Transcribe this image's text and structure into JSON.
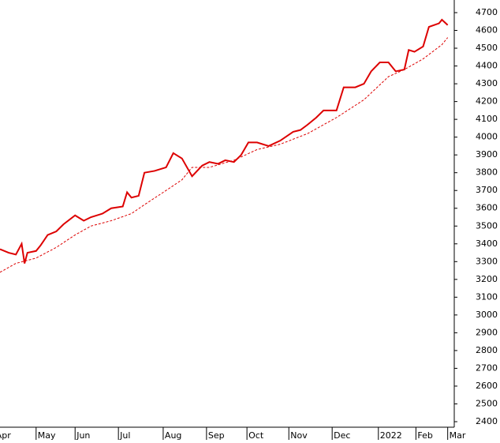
{
  "chart_data": {
    "type": "line",
    "xlim": [
      4,
      318
    ],
    "xticks": [
      {
        "value": 0,
        "label": "Apr"
      },
      {
        "value": 29,
        "label": "May"
      },
      {
        "value": 56,
        "label": "Jun"
      },
      {
        "value": 86,
        "label": "Jul"
      },
      {
        "value": 117,
        "label": "Aug"
      },
      {
        "value": 147,
        "label": "Sep"
      },
      {
        "value": 175,
        "label": "Oct"
      },
      {
        "value": 204,
        "label": "Nov"
      },
      {
        "value": 234,
        "label": "Dec"
      },
      {
        "value": 266,
        "label": "2022"
      },
      {
        "value": 292,
        "label": "Feb"
      },
      {
        "value": 314,
        "label": "Mar"
      }
    ],
    "ylim": [
      2400,
      4700
    ],
    "yticks": [
      2400,
      2500,
      2600,
      2700,
      2800,
      2900,
      3000,
      3100,
      3200,
      3300,
      3400,
      3500,
      3600,
      3700,
      3800,
      3900,
      4000,
      4100,
      4200,
      4300,
      4400,
      4500,
      4600,
      4700
    ],
    "series": [
      {
        "color": "#dd0000",
        "dash": false,
        "x": [
          4,
          10,
          15,
          19,
          21,
          23,
          29,
          32,
          37,
          43,
          48,
          56,
          62,
          67,
          75,
          81,
          89,
          92,
          95,
          100,
          104,
          111,
          119,
          124,
          130,
          137,
          144,
          149,
          155,
          160,
          166,
          171,
          176,
          182,
          190,
          198,
          207,
          212,
          217,
          223,
          228,
          237,
          242,
          250,
          256,
          261,
          267,
          273,
          278,
          284,
          287,
          291,
          297,
          301,
          308,
          310,
          314
        ],
        "values": [
          3370,
          3350,
          3340,
          3400,
          3290,
          3350,
          3360,
          3390,
          3450,
          3470,
          3510,
          3560,
          3530,
          3550,
          3570,
          3600,
          3610,
          3690,
          3660,
          3670,
          3800,
          3810,
          3830,
          3910,
          3880,
          3780,
          3840,
          3860,
          3850,
          3870,
          3860,
          3900,
          3970,
          3970,
          3950,
          3980,
          4030,
          4040,
          4070,
          4110,
          4150,
          4150,
          4280,
          4280,
          4300,
          4370,
          4420,
          4420,
          4370,
          4380,
          4490,
          4480,
          4510,
          4620,
          4640,
          4660,
          4630
        ]
      },
      {
        "color": "#dd0000",
        "dash": true,
        "x": [
          4,
          15,
          29,
          43,
          56,
          67,
          81,
          95,
          104,
          119,
          130,
          137,
          149,
          166,
          182,
          198,
          217,
          237,
          256,
          273,
          284,
          297,
          310,
          314
        ],
        "values": [
          3240,
          3290,
          3320,
          3380,
          3450,
          3500,
          3530,
          3570,
          3620,
          3700,
          3760,
          3830,
          3830,
          3870,
          3930,
          3960,
          4020,
          4110,
          4210,
          4340,
          4380,
          4440,
          4520,
          4560
        ]
      }
    ]
  }
}
